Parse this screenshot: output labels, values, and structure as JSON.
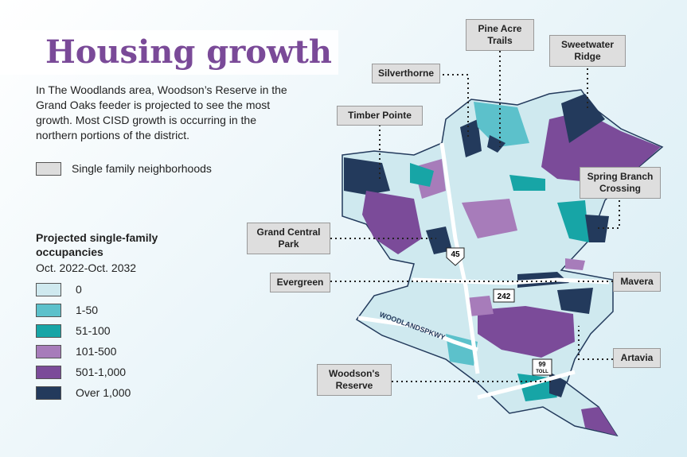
{
  "header": {
    "title": "Housing growth",
    "description": "In The Woodlands area, Woodson’s Reserve in the Grand Oaks feeder is projected to see the most growth. Most CISD growth is occurring in the northern portions of the district."
  },
  "outline_legend": {
    "label": "Single family neighborhoods"
  },
  "legend": {
    "title": "Projected single-family occupancies",
    "subtitle": "Oct. 2022-Oct. 2032",
    "items": [
      {
        "label": "0",
        "color": "#cfe9ef"
      },
      {
        "label": "1-50",
        "color": "#5cc1cb"
      },
      {
        "label": "51-100",
        "color": "#17a5a6"
      },
      {
        "label": "101-500",
        "color": "#a77cba"
      },
      {
        "label": "501-1,000",
        "color": "#7b4b99"
      },
      {
        "label": "Over 1,000",
        "color": "#233a5c"
      }
    ]
  },
  "places": [
    {
      "label": "Pine Acre Trails"
    },
    {
      "label": "Sweetwater Ridge"
    },
    {
      "label": "Silverthorne"
    },
    {
      "label": "Timber Pointe"
    },
    {
      "label": "Spring Branch Crossing"
    },
    {
      "label": "Grand Central Park"
    },
    {
      "label": "Evergreen"
    },
    {
      "label": "Mavera"
    },
    {
      "label": "Artavia"
    },
    {
      "label": "Woodson's Reserve"
    }
  ],
  "roads": {
    "i45": "45",
    "sh242": "242",
    "toll99_number": "99",
    "toll99_text": "TOLL",
    "parkway": "WOODLANDSPKWY"
  }
}
